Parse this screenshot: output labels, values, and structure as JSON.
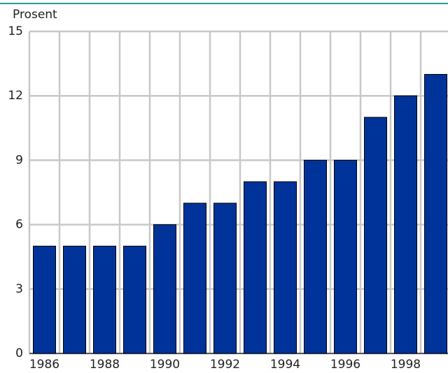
{
  "chart_data": {
    "type": "bar",
    "y_label": "Prosent",
    "categories": [
      "1986",
      null,
      "1988",
      null,
      "1990",
      null,
      "1992",
      null,
      "1994",
      null,
      "1996",
      null,
      "1998",
      null
    ],
    "values": [
      5,
      5,
      5,
      5,
      6,
      7,
      7,
      8,
      8,
      9,
      9,
      11,
      12,
      13
    ],
    "color": "#003399",
    "ylim": [
      0,
      15
    ],
    "yticks": [
      0,
      3,
      6,
      9,
      12,
      15
    ],
    "grid": true
  }
}
